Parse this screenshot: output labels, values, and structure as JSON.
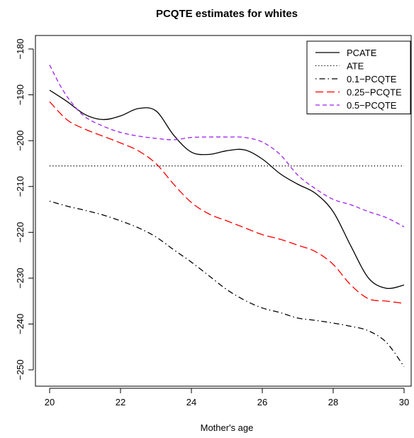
{
  "chart_data": {
    "type": "line",
    "title": "PCQTE estimates for whites",
    "xlabel": "Mother's age",
    "ylabel": "",
    "xlim": [
      20,
      30
    ],
    "ylim": [
      -252,
      -177
    ],
    "x_ticks": [
      20,
      22,
      24,
      26,
      28,
      30
    ],
    "y_ticks": [
      -250,
      -240,
      -230,
      -220,
      -210,
      -200,
      -190,
      -180
    ],
    "legend_position": "top-right",
    "series": [
      {
        "name": "PCATE",
        "color": "#000000",
        "dash": "solid",
        "x": [
          20,
          20.5,
          21,
          21.5,
          22,
          22.5,
          23,
          23.5,
          24,
          24.5,
          25,
          25.5,
          26,
          26.5,
          27,
          27.5,
          28,
          28.5,
          29,
          29.5,
          30
        ],
        "y": [
          -189,
          -191.5,
          -194.3,
          -195.4,
          -194.6,
          -193.0,
          -193.5,
          -198.8,
          -202.5,
          -203.0,
          -202.2,
          -202.0,
          -204.0,
          -207.2,
          -209.5,
          -211.5,
          -215.5,
          -223.0,
          -230.0,
          -232.2,
          -231.5
        ]
      },
      {
        "name": "ATE",
        "color": "#000000",
        "dash": "dotted",
        "x": [
          20,
          30
        ],
        "y": [
          -205.5,
          -205.5
        ]
      },
      {
        "name": "0.1−PCQTE",
        "color": "#000000",
        "dash": "dotdash",
        "x": [
          20,
          20.5,
          21,
          21.5,
          22,
          22.5,
          23,
          23.5,
          24,
          24.5,
          25,
          25.5,
          26,
          26.5,
          27,
          27.5,
          28,
          28.5,
          29,
          29.5,
          30
        ],
        "y": [
          -213.2,
          -214.3,
          -215.2,
          -216.2,
          -217.5,
          -219.0,
          -221.0,
          -223.8,
          -226.5,
          -229.5,
          -232.5,
          -234.8,
          -236.5,
          -237.5,
          -238.7,
          -239.2,
          -239.8,
          -240.5,
          -241.5,
          -244.0,
          -249.3
        ]
      },
      {
        "name": "0.25−PCQTE",
        "color": "#ff0000",
        "dash": "dashed",
        "x": [
          20,
          20.5,
          21,
          21.5,
          22,
          22.5,
          23,
          23.5,
          24,
          24.5,
          25,
          25.5,
          26,
          26.5,
          27,
          27.5,
          28,
          28.5,
          29,
          29.5,
          30
        ],
        "y": [
          -191.5,
          -195.5,
          -197.5,
          -199.0,
          -200.5,
          -202.2,
          -205.0,
          -209.5,
          -213.5,
          -216.0,
          -217.5,
          -219.0,
          -220.5,
          -221.5,
          -222.8,
          -224.2,
          -227.0,
          -231.5,
          -234.5,
          -235.0,
          -235.5
        ]
      },
      {
        "name": "0.5−PCQTE",
        "color": "#a020f0",
        "dash": "shortdash",
        "x": [
          20,
          20.3,
          20.6,
          21,
          21.5,
          22,
          22.5,
          23,
          23.5,
          24,
          24.5,
          25,
          25.5,
          26,
          26.5,
          27,
          27.5,
          28,
          28.5,
          29,
          29.5,
          30
        ],
        "y": [
          -183.5,
          -188.0,
          -191.5,
          -194.8,
          -196.8,
          -198.2,
          -199.0,
          -199.5,
          -199.8,
          -199.3,
          -199.2,
          -199.2,
          -199.3,
          -200.3,
          -203.0,
          -207.5,
          -210.5,
          -212.8,
          -214.0,
          -215.5,
          -216.8,
          -218.8
        ]
      }
    ]
  }
}
